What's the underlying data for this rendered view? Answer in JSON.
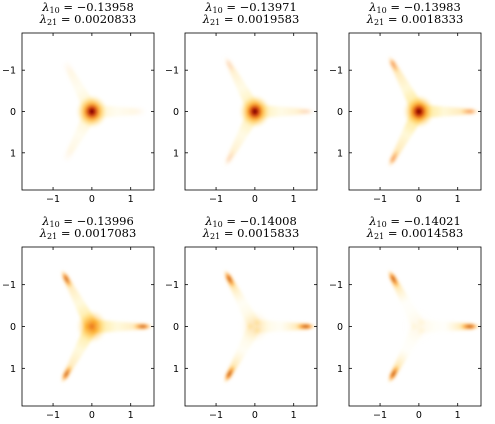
{
  "chart_data": [
    {
      "type": "heatmap",
      "title_lines": [
        {
          "symbol": "λ",
          "sub": "10",
          "eq": " = −0.13958"
        },
        {
          "symbol": "λ",
          "sub": "21",
          "eq": " = 0.0020833"
        }
      ],
      "xlim": [
        -1.8,
        1.6
      ],
      "ylim": [
        -1.9,
        1.9
      ],
      "y_inverted": true,
      "xticks": [
        -1,
        0,
        1
      ],
      "xticklabels": [
        "−1",
        "0",
        "1"
      ],
      "yticks": [
        -1,
        0,
        1
      ],
      "yticklabels": [
        "−1",
        "0",
        "1"
      ],
      "grid": false,
      "colormap": "hot (white → yellow → red → black)",
      "center_intensity": 1.0,
      "arm_intensity": 0.18,
      "tip_intensity": 0.0
    },
    {
      "type": "heatmap",
      "title_lines": [
        {
          "symbol": "λ",
          "sub": "10",
          "eq": " = −0.13971"
        },
        {
          "symbol": "λ",
          "sub": "21",
          "eq": " = 0.0019583"
        }
      ],
      "xlim": [
        -1.8,
        1.6
      ],
      "ylim": [
        -1.9,
        1.9
      ],
      "y_inverted": true,
      "xticks": [
        -1,
        0,
        1
      ],
      "xticklabels": [
        "−1",
        "0",
        "1"
      ],
      "yticks": [
        -1,
        0,
        1
      ],
      "yticklabels": [
        "−1",
        "0",
        "1"
      ],
      "grid": false,
      "colormap": "hot (white → yellow → red → black)",
      "center_intensity": 1.0,
      "arm_intensity": 0.3,
      "tip_intensity": 0.15
    },
    {
      "type": "heatmap",
      "title_lines": [
        {
          "symbol": "λ",
          "sub": "10",
          "eq": " = −0.13983"
        },
        {
          "symbol": "λ",
          "sub": "21",
          "eq": " = 0.0018333"
        }
      ],
      "xlim": [
        -1.8,
        1.6
      ],
      "ylim": [
        -1.9,
        1.9
      ],
      "y_inverted": true,
      "xticks": [
        -1,
        0,
        1
      ],
      "xticklabels": [
        "−1",
        "0",
        "1"
      ],
      "yticks": [
        -1,
        0,
        1
      ],
      "yticklabels": [
        "−1",
        "0",
        "1"
      ],
      "grid": false,
      "colormap": "hot (white → yellow → red → black)",
      "center_intensity": 1.0,
      "arm_intensity": 0.45,
      "tip_intensity": 0.45
    },
    {
      "type": "heatmap",
      "title_lines": [
        {
          "symbol": "λ",
          "sub": "10",
          "eq": " = −0.13996"
        },
        {
          "symbol": "λ",
          "sub": "21",
          "eq": " = 0.0017083"
        }
      ],
      "xlim": [
        -1.8,
        1.6
      ],
      "ylim": [
        -1.9,
        1.9
      ],
      "y_inverted": true,
      "xticks": [
        -1,
        0,
        1
      ],
      "xticklabels": [
        "−1",
        "0",
        "1"
      ],
      "yticks": [
        -1,
        0,
        1
      ],
      "yticklabels": [
        "−1",
        "0",
        "1"
      ],
      "grid": false,
      "colormap": "hot (white → yellow → red → black)",
      "center_intensity": 0.65,
      "arm_intensity": 0.4,
      "tip_intensity": 0.85
    },
    {
      "type": "heatmap",
      "title_lines": [
        {
          "symbol": "λ",
          "sub": "10",
          "eq": " = −0.14008"
        },
        {
          "symbol": "λ",
          "sub": "21",
          "eq": " = 0.0015833"
        }
      ],
      "xlim": [
        -1.8,
        1.6
      ],
      "ylim": [
        -1.9,
        1.9
      ],
      "y_inverted": true,
      "xticks": [
        -1,
        0,
        1
      ],
      "xticklabels": [
        "−1",
        "0",
        "1"
      ],
      "yticks": [
        -1,
        0,
        1
      ],
      "yticklabels": [
        "−1",
        "0",
        "1"
      ],
      "grid": false,
      "colormap": "hot (white → yellow → red → black)",
      "center_intensity": 0.15,
      "arm_intensity": 0.12,
      "tip_intensity": 1.0
    },
    {
      "type": "heatmap",
      "title_lines": [
        {
          "symbol": "λ",
          "sub": "10",
          "eq": " = −0.14021"
        },
        {
          "symbol": "λ",
          "sub": "21",
          "eq": " = 0.0014583"
        }
      ],
      "xlim": [
        -1.8,
        1.6
      ],
      "ylim": [
        -1.9,
        1.9
      ],
      "y_inverted": true,
      "xticks": [
        -1,
        0,
        1
      ],
      "xticklabels": [
        "−1",
        "0",
        "1"
      ],
      "yticks": [
        -1,
        0,
        1
      ],
      "yticklabels": [
        "−1",
        "0",
        "1"
      ],
      "grid": false,
      "colormap": "hot (white → yellow → red → black)",
      "center_intensity": 0.03,
      "arm_intensity": 0.05,
      "tip_intensity": 1.0
    }
  ]
}
